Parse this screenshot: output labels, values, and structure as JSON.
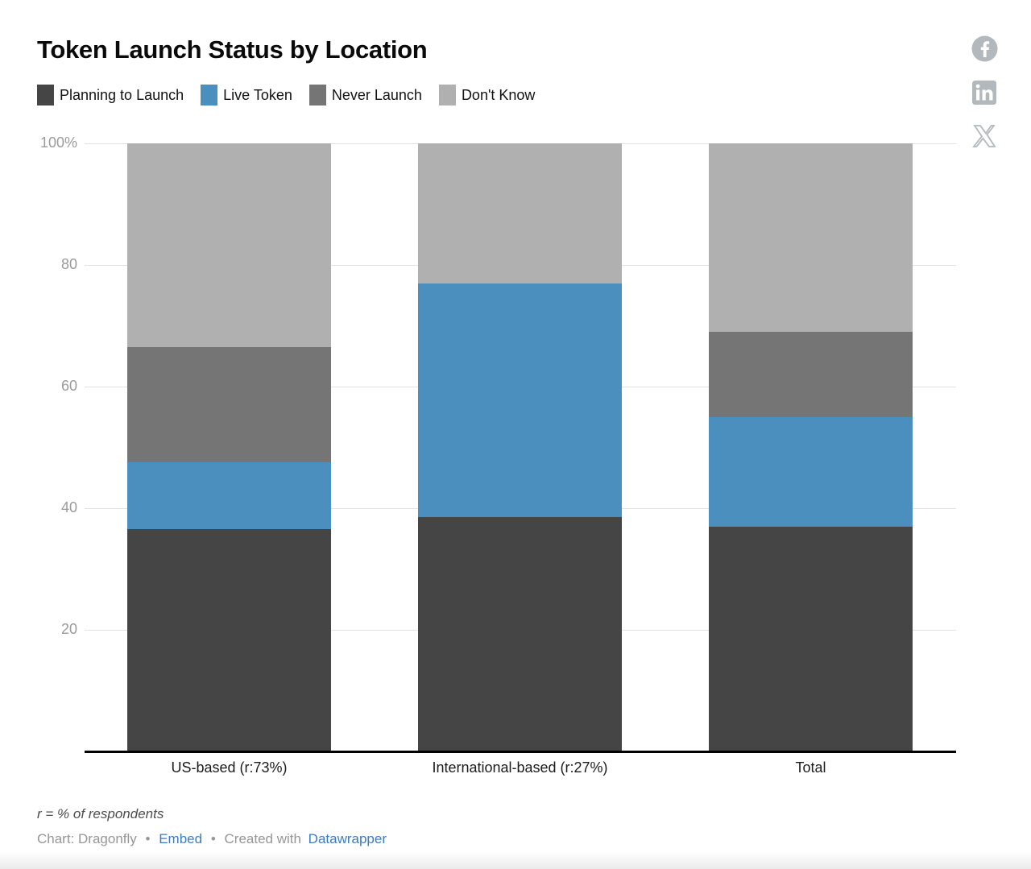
{
  "header": {
    "title": "Token Launch Status by Location"
  },
  "legend": {
    "items": [
      {
        "label": "Planning to Launch",
        "color": "#454545"
      },
      {
        "label": "Live Token",
        "color": "#4a8fbe"
      },
      {
        "label": "Never Launch",
        "color": "#757575"
      },
      {
        "label": "Don't Know",
        "color": "#b0b0b0"
      }
    ]
  },
  "chart_data": {
    "type": "bar",
    "stacked": true,
    "unit": "%",
    "title": "Token Launch Status by Location",
    "categories": [
      "US-based (r:73%)",
      "International-based (r:27%)",
      "Total"
    ],
    "series": [
      {
        "name": "Planning to Launch",
        "color": "#454545",
        "values": [
          36.5,
          38.5,
          37
        ]
      },
      {
        "name": "Live Token",
        "color": "#4a8fbe",
        "values": [
          11,
          38.5,
          18
        ]
      },
      {
        "name": "Never Launch",
        "color": "#757575",
        "values": [
          19,
          0,
          14
        ]
      },
      {
        "name": "Don't Know",
        "color": "#b0b0b0",
        "values": [
          33.5,
          23,
          31
        ]
      }
    ],
    "ylim": [
      0,
      100
    ],
    "yticks": [
      20,
      40,
      60,
      80,
      100
    ],
    "ytick_labels": [
      "20",
      "40",
      "60",
      "80",
      "100%"
    ],
    "grid": true,
    "legend_position": "top"
  },
  "footnote": "r = % of respondents",
  "footer": {
    "credit": "Chart: Dragonfly",
    "separator": "•",
    "embed_label": "Embed",
    "created_with": "Created with",
    "datawrapper_label": "Datawrapper"
  },
  "social": {
    "color": "#b3b8bc",
    "icons": [
      "facebook",
      "linkedin",
      "x"
    ]
  }
}
